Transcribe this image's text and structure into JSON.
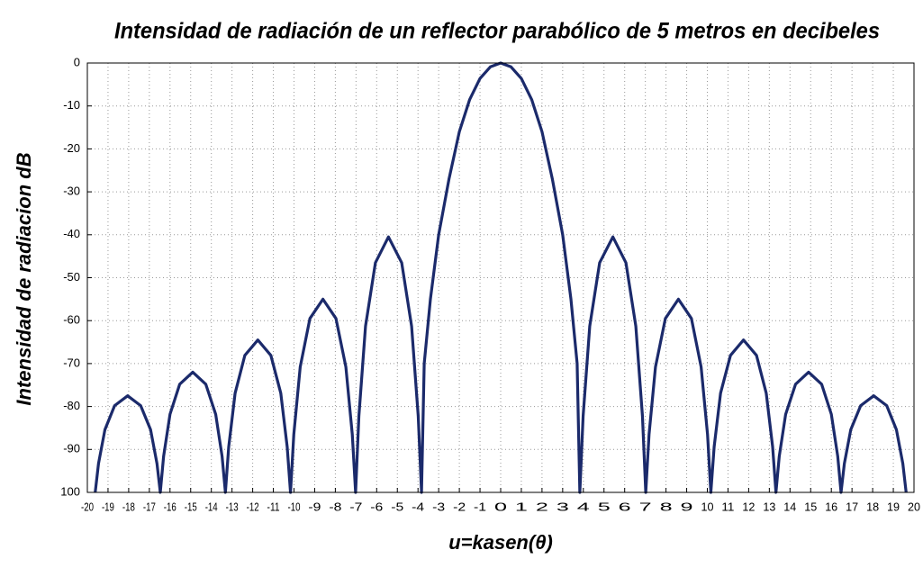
{
  "chart_data": {
    "type": "line",
    "title": "Intensidad de radiación de un reflector parabólico de 5 metros en decibeles",
    "xlabel": "u=kasen(θ)",
    "ylabel": "Intensidad de radiacion dB",
    "xlim": [
      -20,
      20
    ],
    "ylim": [
      -100,
      0
    ],
    "xticks": [
      -20,
      -19,
      -18,
      -17,
      -16,
      -15,
      -14,
      -13,
      -12,
      -11,
      -10,
      -9,
      -8,
      -7,
      -6,
      -5,
      -4,
      -3,
      -2,
      -1,
      0,
      1,
      2,
      3,
      4,
      5,
      6,
      7,
      8,
      9,
      10,
      11,
      12,
      13,
      14,
      15,
      16,
      17,
      18,
      19,
      20
    ],
    "yticks": [
      0,
      -10,
      -20,
      -30,
      -40,
      -50,
      -60,
      -70,
      -80,
      -90,
      {
        "value": -100,
        "label": "100"
      }
    ],
    "grid": true,
    "series": [
      {
        "color": "#1b2a6b",
        "x": [
          -19.62,
          -19.46,
          -19.15,
          -18.68,
          -18.05,
          -17.42,
          -16.94,
          -16.63,
          -16.47,
          -16.31,
          -16.0,
          -15.53,
          -14.9,
          -14.27,
          -13.79,
          -13.48,
          -13.32,
          -13.16,
          -12.85,
          -12.38,
          -11.75,
          -11.12,
          -10.64,
          -10.33,
          -10.17,
          -10.01,
          -9.7,
          -9.23,
          -8.6,
          -7.97,
          -7.49,
          -7.18,
          -7.02,
          -6.86,
          -6.54,
          -6.06,
          -5.43,
          -4.79,
          -4.31,
          -3.99,
          -3.83,
          -3.7,
          -3.4,
          -3,
          -2.5,
          -2,
          -1.5,
          -1,
          -0.5,
          0,
          0.5,
          1,
          1.5,
          2,
          2.5,
          3,
          3.4,
          3.7,
          3.83,
          3.99,
          4.31,
          4.79,
          5.43,
          6.06,
          6.54,
          6.86,
          7.02,
          7.18,
          7.49,
          7.97,
          8.6,
          9.23,
          9.7,
          10.01,
          10.17,
          10.33,
          10.64,
          11.12,
          11.75,
          12.38,
          12.85,
          13.16,
          13.32,
          13.48,
          13.79,
          14.27,
          14.9,
          15.53,
          16.0,
          16.31,
          16.47,
          16.63,
          16.94,
          17.42,
          18.05,
          18.68,
          19.15,
          19.46,
          19.62
        ],
        "values": [
          -100,
          -93.3,
          -85.4,
          -79.8,
          -77.5,
          -79.8,
          -85.4,
          -93.3,
          -100,
          -91.6,
          -81.8,
          -74.8,
          -72,
          -74.8,
          -81.8,
          -91.6,
          -100,
          -89.4,
          -76.9,
          -68.1,
          -64.5,
          -68.1,
          -76.9,
          -89.4,
          -100,
          -86.5,
          -70.8,
          -59.5,
          -55,
          -59.5,
          -70.8,
          -86.5,
          -100,
          -82.2,
          -61.3,
          -46.5,
          -40.5,
          -46.5,
          -61.3,
          -82.2,
          -100,
          -70,
          -55,
          -40,
          -27,
          -16,
          -8.5,
          -3.6,
          -0.9,
          0,
          -0.9,
          -3.6,
          -8.5,
          -16,
          -27,
          -40,
          -55,
          -70,
          -100,
          -82.2,
          -61.3,
          -46.5,
          -40.5,
          -46.5,
          -61.3,
          -82.2,
          -100,
          -86.5,
          -70.8,
          -59.5,
          -55,
          -59.5,
          -70.8,
          -86.5,
          -100,
          -89.4,
          -76.9,
          -68.1,
          -64.5,
          -68.1,
          -76.9,
          -89.4,
          -100,
          -91.6,
          -81.8,
          -74.8,
          -72,
          -74.8,
          -81.8,
          -91.6,
          -100,
          -93.3,
          -85.4,
          -79.8,
          -77.5,
          -79.8,
          -85.4,
          -93.3,
          -100
        ]
      }
    ]
  }
}
